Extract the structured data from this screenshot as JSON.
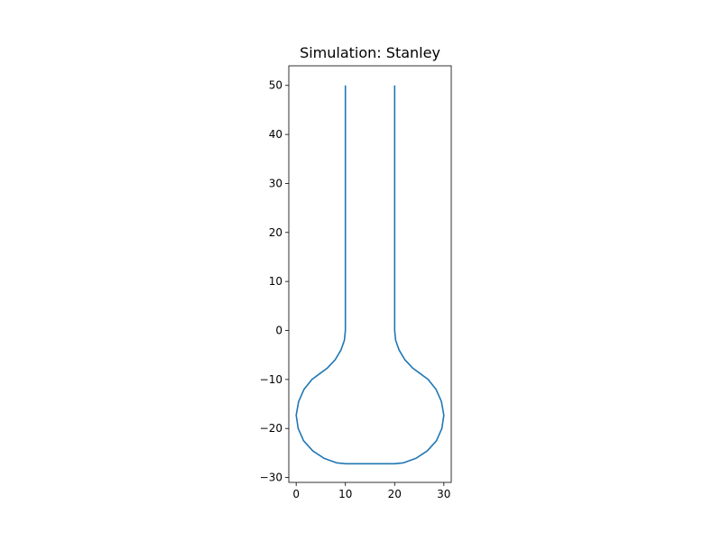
{
  "chart_data": {
    "type": "line",
    "title": "Simulation: Stanley",
    "xlabel": "",
    "ylabel": "",
    "xlim": [
      -1.5,
      31.5
    ],
    "ylim": [
      -31,
      54
    ],
    "xticks": [
      0,
      10,
      20,
      30
    ],
    "yticks": [
      -30,
      -20,
      -10,
      0,
      10,
      20,
      30,
      40,
      50
    ],
    "xtick_labels": [
      "0",
      "10",
      "20",
      "30"
    ],
    "ytick_labels": [
      "−30",
      "−20",
      "−10",
      "0",
      "10",
      "20",
      "30",
      "40",
      "50"
    ],
    "grid": false,
    "legend": "none",
    "series": [
      {
        "color": "#1f77b4",
        "points": [
          [
            10,
            50
          ],
          [
            10,
            0
          ],
          [
            9.8,
            -2
          ],
          [
            9.1,
            -4
          ],
          [
            7.9,
            -6
          ],
          [
            6.3,
            -7.7
          ],
          [
            4.8,
            -8.8
          ],
          [
            3.2,
            -10
          ],
          [
            1.6,
            -12
          ],
          [
            0.5,
            -14.5
          ],
          [
            0,
            -17.3
          ],
          [
            0.4,
            -20
          ],
          [
            1.5,
            -22.5
          ],
          [
            3.4,
            -24.6
          ],
          [
            5.7,
            -26.1
          ],
          [
            8.2,
            -27
          ],
          [
            10,
            -27.2
          ],
          [
            15,
            -27.2
          ],
          [
            20,
            -27.2
          ],
          [
            21.8,
            -27
          ],
          [
            24.3,
            -26.1
          ],
          [
            26.6,
            -24.6
          ],
          [
            28.5,
            -22.5
          ],
          [
            29.6,
            -20
          ],
          [
            30,
            -17.3
          ],
          [
            29.5,
            -14.5
          ],
          [
            28.4,
            -12
          ],
          [
            26.8,
            -10
          ],
          [
            25.2,
            -8.8
          ],
          [
            23.7,
            -7.7
          ],
          [
            22.1,
            -6
          ],
          [
            20.9,
            -4
          ],
          [
            20.2,
            -2
          ],
          [
            20,
            0
          ],
          [
            20,
            50
          ]
        ]
      }
    ]
  }
}
